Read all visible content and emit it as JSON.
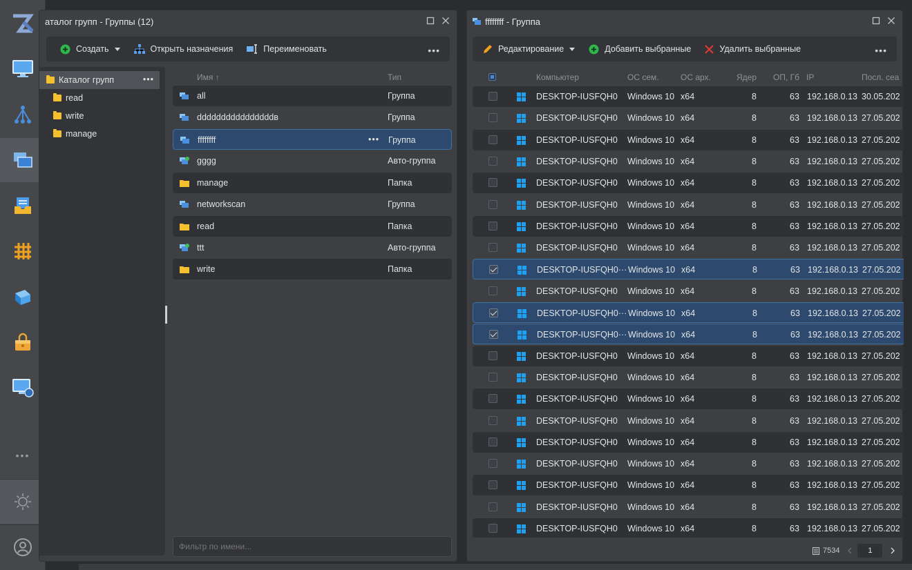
{
  "rail": {
    "icons": [
      "app-logo-icon",
      "monitor-icon",
      "network-tree-icon",
      "groups-icon",
      "inbox-icon",
      "grid-icon",
      "layers-icon",
      "lock-folder-icon",
      "remote-desktop-icon",
      "more-icon",
      "theme-icon",
      "user-icon"
    ],
    "more_label": "•••"
  },
  "left_panel": {
    "title": "аталог групп - Группы (12)",
    "toolbar": {
      "create": "Создать",
      "open_assignments": "Открыть назначения",
      "rename": "Переименовать",
      "more": "•••"
    },
    "tree": {
      "root": "Каталог групп",
      "root_more": "•••",
      "children": [
        "read",
        "write",
        "manage"
      ]
    },
    "list": {
      "col_name": "Имя ↑",
      "col_type": "Тип",
      "rows": [
        {
          "name": "all",
          "type": "Группа",
          "icon": "group"
        },
        {
          "name": "ddddddddddddddddв",
          "type": "Группа",
          "icon": "group"
        },
        {
          "name": "ffffffff",
          "type": "Группа",
          "icon": "group",
          "more": "•••"
        },
        {
          "name": "gggg",
          "type": "Авто-группа",
          "icon": "autogroup"
        },
        {
          "name": "manage",
          "type": "Папка",
          "icon": "folder"
        },
        {
          "name": "networkscan",
          "type": "Группа",
          "icon": "group"
        },
        {
          "name": "read",
          "type": "Папка",
          "icon": "folder"
        },
        {
          "name": "ttt",
          "type": "Авто-группа",
          "icon": "autogroup"
        },
        {
          "name": "write",
          "type": "Папка",
          "icon": "folder"
        }
      ]
    },
    "filter_placeholder": "Фильтр по имени..."
  },
  "right_panel": {
    "title": "ffffffff - Группа",
    "toolbar": {
      "edit": "Редактирование",
      "add_selected": "Добавить выбранные",
      "remove_selected": "Удалить выбранные",
      "more": "•••"
    },
    "columns": {
      "computer": "Компьютер",
      "os_family": "ОС сем.",
      "os_arch": "ОС арх.",
      "cores": "Ядер",
      "ram": "ОП, Гб",
      "ip": "IP",
      "last_seen": "Посл. сеа"
    },
    "rows": [
      {
        "computer": "DESKTOP-IUSFQH0",
        "os": "Windows 10",
        "arch": "x64",
        "cores": "8",
        "ram": "63",
        "ip": "192.168.0.13",
        "date": "30.05.202",
        "checked": false
      },
      {
        "computer": "DESKTOP-IUSFQH0",
        "os": "Windows 10",
        "arch": "x64",
        "cores": "8",
        "ram": "63",
        "ip": "192.168.0.13",
        "date": "27.05.202",
        "checked": false
      },
      {
        "computer": "DESKTOP-IUSFQH0",
        "os": "Windows 10",
        "arch": "x64",
        "cores": "8",
        "ram": "63",
        "ip": "192.168.0.13",
        "date": "27.05.202",
        "checked": false
      },
      {
        "computer": "DESKTOP-IUSFQH0",
        "os": "Windows 10",
        "arch": "x64",
        "cores": "8",
        "ram": "63",
        "ip": "192.168.0.13",
        "date": "27.05.202",
        "checked": false
      },
      {
        "computer": "DESKTOP-IUSFQH0",
        "os": "Windows 10",
        "arch": "x64",
        "cores": "8",
        "ram": "63",
        "ip": "192.168.0.13",
        "date": "27.05.202",
        "checked": false
      },
      {
        "computer": "DESKTOP-IUSFQH0",
        "os": "Windows 10",
        "arch": "x64",
        "cores": "8",
        "ram": "63",
        "ip": "192.168.0.13",
        "date": "27.05.202",
        "checked": false
      },
      {
        "computer": "DESKTOP-IUSFQH0",
        "os": "Windows 10",
        "arch": "x64",
        "cores": "8",
        "ram": "63",
        "ip": "192.168.0.13",
        "date": "27.05.202",
        "checked": false
      },
      {
        "computer": "DESKTOP-IUSFQH0",
        "os": "Windows 10",
        "arch": "x64",
        "cores": "8",
        "ram": "63",
        "ip": "192.168.0.13",
        "date": "27.05.202",
        "checked": false
      },
      {
        "computer": "DESKTOP-IUSFQH0···",
        "os": "Windows 10",
        "arch": "x64",
        "cores": "8",
        "ram": "63",
        "ip": "192.168.0.13",
        "date": "27.05.202",
        "checked": true
      },
      {
        "computer": "DESKTOP-IUSFQH0",
        "os": "Windows 10",
        "arch": "x64",
        "cores": "8",
        "ram": "63",
        "ip": "192.168.0.13",
        "date": "27.05.202",
        "checked": false
      },
      {
        "computer": "DESKTOP-IUSFQH0···",
        "os": "Windows 10",
        "arch": "x64",
        "cores": "8",
        "ram": "63",
        "ip": "192.168.0.13",
        "date": "27.05.202",
        "checked": true
      },
      {
        "computer": "DESKTOP-IUSFQH0···",
        "os": "Windows 10",
        "arch": "x64",
        "cores": "8",
        "ram": "63",
        "ip": "192.168.0.13",
        "date": "27.05.202",
        "checked": true
      },
      {
        "computer": "DESKTOP-IUSFQH0",
        "os": "Windows 10",
        "arch": "x64",
        "cores": "8",
        "ram": "63",
        "ip": "192.168.0.13",
        "date": "27.05.202",
        "checked": false
      },
      {
        "computer": "DESKTOP-IUSFQH0",
        "os": "Windows 10",
        "arch": "x64",
        "cores": "8",
        "ram": "63",
        "ip": "192.168.0.13",
        "date": "27.05.202",
        "checked": false
      },
      {
        "computer": "DESKTOP-IUSFQH0",
        "os": "Windows 10",
        "arch": "x64",
        "cores": "8",
        "ram": "63",
        "ip": "192.168.0.13",
        "date": "27.05.202",
        "checked": false
      },
      {
        "computer": "DESKTOP-IUSFQH0",
        "os": "Windows 10",
        "arch": "x64",
        "cores": "8",
        "ram": "63",
        "ip": "192.168.0.13",
        "date": "27.05.202",
        "checked": false
      },
      {
        "computer": "DESKTOP-IUSFQH0",
        "os": "Windows 10",
        "arch": "x64",
        "cores": "8",
        "ram": "63",
        "ip": "192.168.0.13",
        "date": "27.05.202",
        "checked": false
      },
      {
        "computer": "DESKTOP-IUSFQH0",
        "os": "Windows 10",
        "arch": "x64",
        "cores": "8",
        "ram": "63",
        "ip": "192.168.0.13",
        "date": "27.05.202",
        "checked": false
      },
      {
        "computer": "DESKTOP-IUSFQH0",
        "os": "Windows 10",
        "arch": "x64",
        "cores": "8",
        "ram": "63",
        "ip": "192.168.0.13",
        "date": "27.05.202",
        "checked": false
      },
      {
        "computer": "DESKTOP-IUSFQH0",
        "os": "Windows 10",
        "arch": "x64",
        "cores": "8",
        "ram": "63",
        "ip": "192.168.0.13",
        "date": "27.05.202",
        "checked": false
      },
      {
        "computer": "DESKTOP-IUSFQH0",
        "os": "Windows 10",
        "arch": "x64",
        "cores": "8",
        "ram": "63",
        "ip": "192.168.0.13",
        "date": "27.05.202",
        "checked": false
      }
    ],
    "footer": {
      "total": "7534",
      "page": "1"
    }
  },
  "colors": {
    "accent": "#3f6fa3",
    "selected_row": "#2d4a6e",
    "folder": "#f4c02e",
    "windows": "#1ea1f1",
    "create_green": "#2eb84b",
    "delete_red": "#e53935"
  }
}
